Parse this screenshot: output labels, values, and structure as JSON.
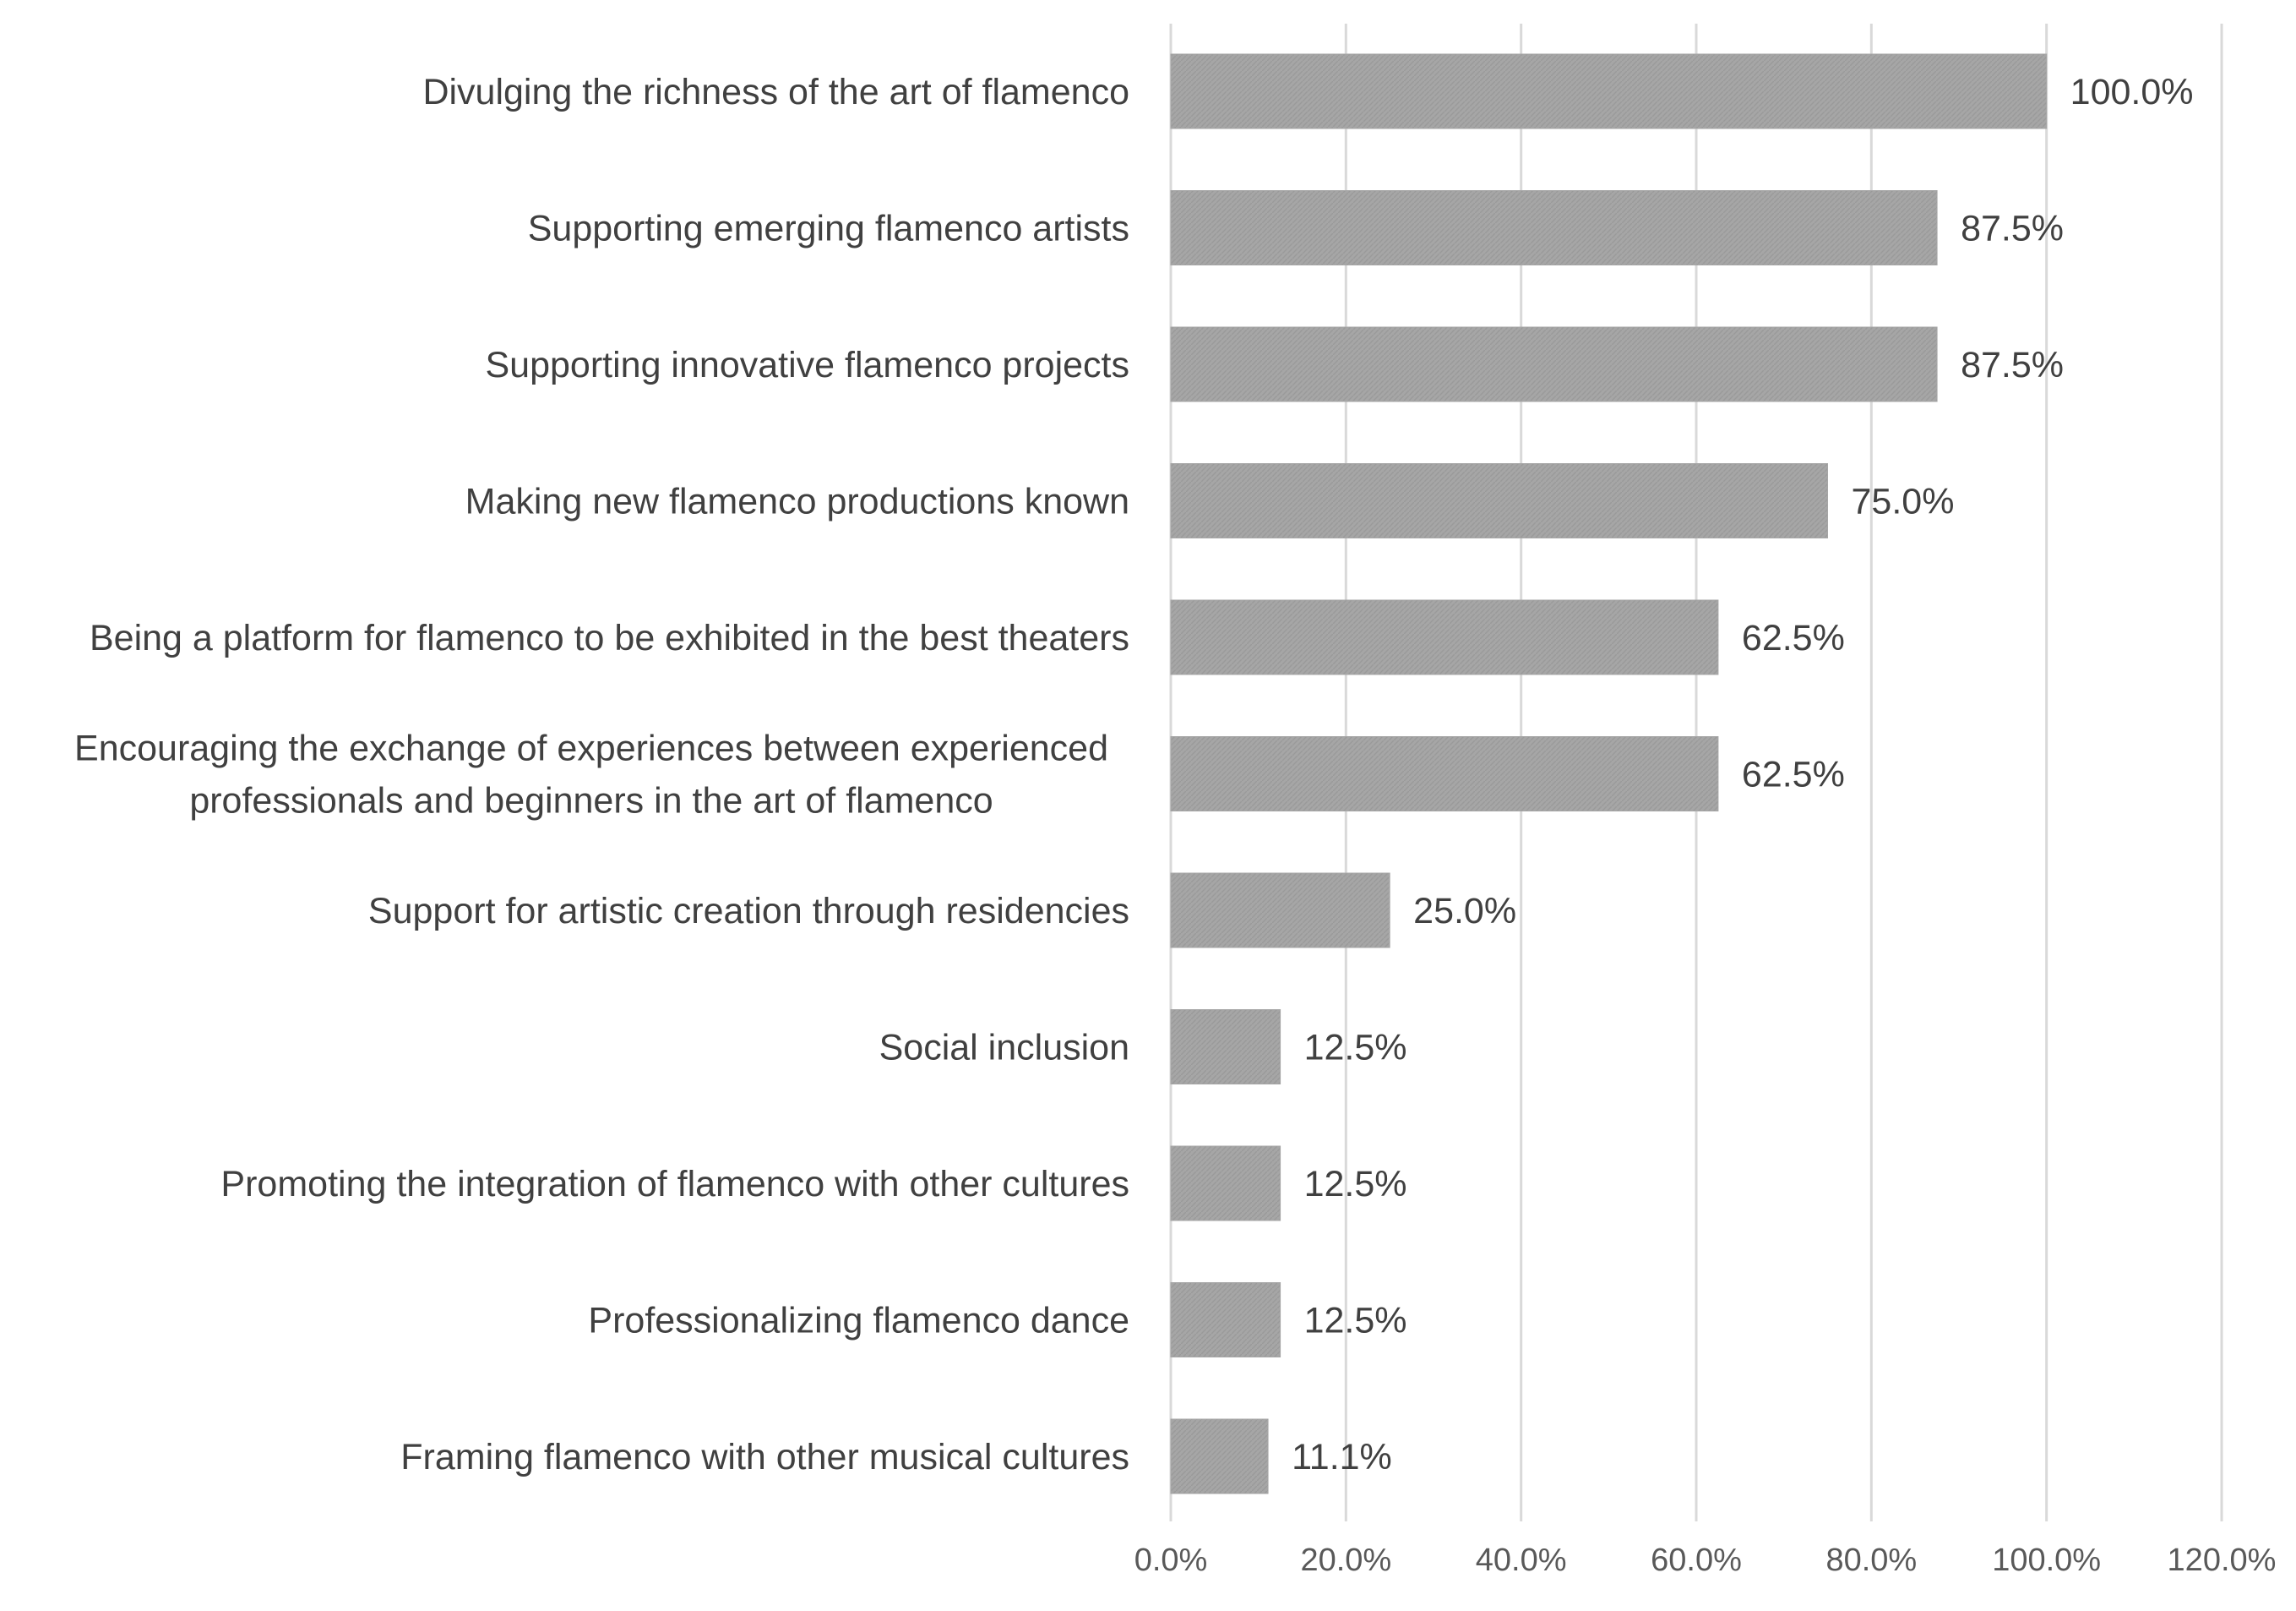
{
  "chart_data": {
    "type": "bar",
    "orientation": "horizontal",
    "categories": [
      [
        "Divulging the richness of the art of flamenco"
      ],
      [
        "Supporting emerging flamenco artists"
      ],
      [
        "Supporting innovative flamenco projects"
      ],
      [
        "Making new flamenco productions known"
      ],
      [
        "Being a platform for flamenco to be exhibited in the best theaters"
      ],
      [
        "Encouraging the exchange of experiences between experienced",
        "professionals and beginners in the art of flamenco"
      ],
      [
        "Support for artistic creation through residencies"
      ],
      [
        "Social inclusion"
      ],
      [
        "Promoting the integration of flamenco with other cultures"
      ],
      [
        "Professionalizing flamenco dance"
      ],
      [
        "Framing flamenco with other musical cultures"
      ]
    ],
    "values": [
      100.0,
      87.5,
      87.5,
      75.0,
      62.5,
      62.5,
      25.0,
      12.5,
      12.5,
      12.5,
      11.1
    ],
    "value_labels": [
      "100.0%",
      "87.5%",
      "87.5%",
      "75.0%",
      "62.5%",
      "62.5%",
      "25.0%",
      "12.5%",
      "12.5%",
      "12.5%",
      "11.1%"
    ],
    "xlim": [
      0,
      120
    ],
    "xticks": [
      0,
      20,
      40,
      60,
      80,
      100,
      120
    ],
    "xtick_labels": [
      "0.0%",
      "20.0%",
      "40.0%",
      "60.0%",
      "80.0%",
      "100.0%",
      "120.0%"
    ],
    "title": "",
    "xlabel": "",
    "ylabel": "",
    "grid": "vertical",
    "legend": "none",
    "bar_color": "#a6a6a6",
    "gridline_color": "#d9d9d9",
    "text_color": "#404040"
  }
}
